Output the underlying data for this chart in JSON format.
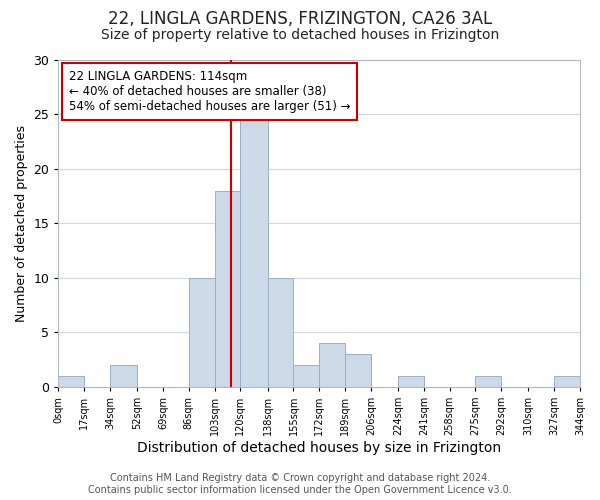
{
  "title": "22, LINGLA GARDENS, FRIZINGTON, CA26 3AL",
  "subtitle": "Size of property relative to detached houses in Frizington",
  "xlabel": "Distribution of detached houses by size in Frizington",
  "ylabel": "Number of detached properties",
  "bin_edges": [
    0,
    17,
    34,
    52,
    69,
    86,
    103,
    120,
    138,
    155,
    172,
    189,
    206,
    224,
    241,
    258,
    275,
    292,
    310,
    327,
    344
  ],
  "bar_heights": [
    1,
    0,
    2,
    0,
    0,
    10,
    18,
    25,
    10,
    2,
    4,
    3,
    0,
    1,
    0,
    0,
    1,
    0,
    0,
    1
  ],
  "bar_color": "#ccd9e8",
  "bar_edge_color": "#9ab0c8",
  "vline_x": 114,
  "vline_color": "#cc0000",
  "ylim": [
    0,
    30
  ],
  "yticks": [
    0,
    5,
    10,
    15,
    20,
    25,
    30
  ],
  "xtick_labels": [
    "0sqm",
    "17sqm",
    "34sqm",
    "52sqm",
    "69sqm",
    "86sqm",
    "103sqm",
    "120sqm",
    "138sqm",
    "155sqm",
    "172sqm",
    "189sqm",
    "206sqm",
    "224sqm",
    "241sqm",
    "258sqm",
    "275sqm",
    "292sqm",
    "310sqm",
    "327sqm",
    "344sqm"
  ],
  "annotation_title": "22 LINGLA GARDENS: 114sqm",
  "annotation_line1": "← 40% of detached houses are smaller (38)",
  "annotation_line2": "54% of semi-detached houses are larger (51) →",
  "annotation_box_color": "#ffffff",
  "annotation_box_edge_color": "#cc0000",
  "footer_line1": "Contains HM Land Registry data © Crown copyright and database right 2024.",
  "footer_line2": "Contains public sector information licensed under the Open Government Licence v3.0.",
  "background_color": "#ffffff",
  "plot_background_color": "#ffffff",
  "grid_color": "#d0d8e0",
  "title_fontsize": 12,
  "subtitle_fontsize": 10,
  "xlabel_fontsize": 10,
  "ylabel_fontsize": 9,
  "footer_fontsize": 7,
  "annotation_fontsize": 8.5
}
